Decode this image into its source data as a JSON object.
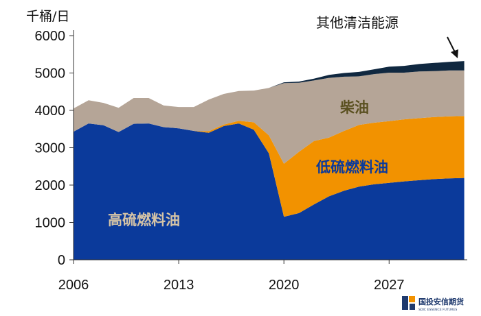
{
  "chart_data": {
    "type": "area",
    "stacked": true,
    "unit_label": "千桶/日",
    "x": [
      2006,
      2007,
      2008,
      2009,
      2010,
      2011,
      2012,
      2013,
      2014,
      2015,
      2016,
      2017,
      2018,
      2019,
      2020,
      2021,
      2022,
      2023,
      2024,
      2025,
      2026,
      2027,
      2028,
      2029,
      2030,
      2031,
      2032
    ],
    "xticks": [
      2006,
      2013,
      2020,
      2027
    ],
    "xtick_labels": [
      "2006",
      "2013",
      "2020",
      "2027"
    ],
    "xlim": [
      2006,
      2032.2
    ],
    "ylim": [
      0,
      6000
    ],
    "yticks": [
      0,
      1000,
      2000,
      3000,
      4000,
      5000,
      6000
    ],
    "ytick_labels": [
      "0",
      "1000",
      "2000",
      "3000",
      "4000",
      "5000",
      "6000"
    ],
    "grid": false,
    "series": [
      {
        "name": "高硫燃料油",
        "color": "#0b3a9b",
        "label_color": "#d6c4a6",
        "values": [
          3430,
          3650,
          3600,
          3420,
          3640,
          3650,
          3550,
          3520,
          3450,
          3400,
          3580,
          3650,
          3480,
          2850,
          1150,
          1250,
          1480,
          1700,
          1850,
          1960,
          2020,
          2060,
          2100,
          2130,
          2160,
          2180,
          2190
        ]
      },
      {
        "name": "低硫燃料油",
        "color": "#f29200",
        "label_color": "#0b3a9b",
        "values": [
          0,
          0,
          0,
          0,
          0,
          0,
          0,
          0,
          0,
          40,
          40,
          70,
          200,
          480,
          1420,
          1640,
          1700,
          1570,
          1600,
          1650,
          1650,
          1650,
          1660,
          1660,
          1660,
          1660,
          1660
        ]
      },
      {
        "name": "柴油",
        "color": "#b5a597",
        "label_color": "#5a5020",
        "values": [
          620,
          620,
          600,
          650,
          690,
          680,
          580,
          570,
          640,
          850,
          820,
          800,
          850,
          1270,
          2160,
          1850,
          1620,
          1600,
          1450,
          1300,
          1300,
          1300,
          1250,
          1250,
          1230,
          1230,
          1220
        ]
      },
      {
        "name": "其他清洁能源",
        "color": "#102840",
        "label_color": "#111111",
        "values": [
          0,
          0,
          0,
          0,
          0,
          0,
          0,
          0,
          0,
          0,
          0,
          0,
          0,
          0,
          20,
          30,
          50,
          80,
          100,
          120,
          130,
          160,
          180,
          200,
          220,
          230,
          250
        ]
      }
    ]
  },
  "labels": {
    "hsfo": "高硫燃料油",
    "lsfo": "低硫燃料油",
    "diesel": "柴油",
    "other": "其他清洁能源"
  },
  "logo": {
    "name": "国投安信期货",
    "english": "SDIC ESSENCE FUTURES"
  }
}
